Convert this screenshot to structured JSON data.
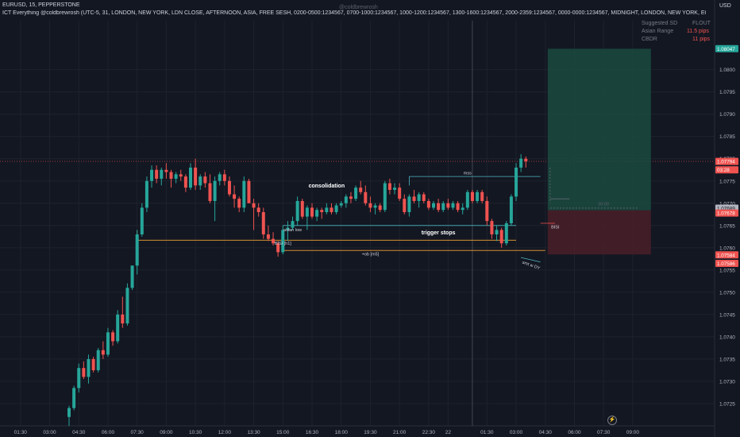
{
  "header": {
    "symbol_line": "EURUSD, 15, PEPPERSTONE",
    "indicator_line": "ICT Everything @coldbrewrosh (UTC-5, 31, LONDON, NEW YORK, LDN CLOSE, AFTERNOON, ASIA, FREE SESH, 0200-0500:1234567, 0700-1000:1234567, 1000-1200:1234567, 1300-1600:1234567, 2000-2359:1234567, 0000-0000:1234567, MIDNIGHT, LONDON, NEW YORK, EQUITIES, Dotted, Solid, Solid, Solid, 1px, 1px, 1px, MIDNIG",
    "currency": "USD",
    "watermark": "@coldbrewrosh"
  },
  "info_panel": {
    "suggested_sd_label": "Suggested SD",
    "suggested_sd_value": "FLOUT",
    "asian_range_label": "Asian Range",
    "asian_range_value": "11.5 pips",
    "cbdr_label": "CBDR",
    "cbdr_value": "11 pips"
  },
  "colors": {
    "background": "#131722",
    "up": "#26a69a",
    "down": "#ef5350",
    "grid": "#1e222d",
    "text": "#b2b5be",
    "orange": "#f0a030",
    "teal": "#4db6c0",
    "tp_zone": "#1b4a40",
    "sl_zone": "#4a1f28"
  },
  "time_icon": "lightning-icon",
  "chart_data": {
    "type": "candlestick",
    "y_axis": {
      "range": [
        1.072,
        1.0811
      ],
      "ticks": [
        1.0725,
        1.073,
        1.0735,
        1.074,
        1.0745,
        1.075,
        1.0755,
        1.076,
        1.0765,
        1.077,
        1.0775,
        1.078,
        1.0785,
        1.079,
        1.0795,
        1.08
      ]
    },
    "x_axis": {
      "ticks": [
        "01:30",
        "03:00",
        "04:30",
        "06:00",
        "07:30",
        "09:00",
        "10:30",
        "12:00",
        "13:30",
        "15:00",
        "16:30",
        "18:00",
        "19:30",
        "21:00",
        "22:30",
        "22",
        "01:30",
        "03:00",
        "04:30",
        "06:00",
        "07:30",
        "09:00"
      ],
      "tick_bar_index": [
        -10,
        -4,
        2,
        8,
        14,
        20,
        26,
        32,
        38,
        44,
        50,
        56,
        62,
        68,
        74,
        78,
        86,
        92,
        98,
        104,
        110,
        116
      ]
    },
    "candles_ohlc": [
      [
        1.0722,
        1.07245,
        1.072,
        1.0724
      ],
      [
        1.0724,
        1.0729,
        1.07235,
        1.07285
      ],
      [
        1.07285,
        1.0734,
        1.07275,
        1.0733
      ],
      [
        1.0733,
        1.07345,
        1.07305,
        1.0731
      ],
      [
        1.0731,
        1.0736,
        1.07295,
        1.0735
      ],
      [
        1.0735,
        1.07355,
        1.0732,
        1.07325
      ],
      [
        1.07325,
        1.07375,
        1.0732,
        1.0737
      ],
      [
        1.0737,
        1.0739,
        1.0735,
        1.0736
      ],
      [
        1.0736,
        1.0742,
        1.07355,
        1.0741
      ],
      [
        1.0741,
        1.07415,
        1.0738,
        1.0739
      ],
      [
        1.0739,
        1.0746,
        1.07385,
        1.0745
      ],
      [
        1.0745,
        1.0749,
        1.0742,
        1.0743
      ],
      [
        1.0743,
        1.0752,
        1.07425,
        1.0751
      ],
      [
        1.0751,
        1.0756,
        1.07505,
        1.0756
      ],
      [
        1.0756,
        1.0764,
        1.0754,
        1.0763
      ],
      [
        1.0763,
        1.077,
        1.07625,
        1.0769
      ],
      [
        1.0769,
        1.0776,
        1.0768,
        1.0775
      ],
      [
        1.0775,
        1.07785,
        1.07735,
        1.07775
      ],
      [
        1.07775,
        1.07785,
        1.07745,
        1.07755
      ],
      [
        1.07755,
        1.0778,
        1.0774,
        1.07775
      ],
      [
        1.07775,
        1.0779,
        1.07755,
        1.0777
      ],
      [
        1.0777,
        1.07775,
        1.07735,
        1.07755
      ],
      [
        1.07755,
        1.0777,
        1.07745,
        1.07765
      ],
      [
        1.07765,
        1.07775,
        1.0775,
        1.0776
      ],
      [
        1.0776,
        1.07765,
        1.07725,
        1.07735
      ],
      [
        1.07735,
        1.0779,
        1.0773,
        1.0778
      ],
      [
        1.0778,
        1.078,
        1.0773,
        1.0774
      ],
      [
        1.0774,
        1.07765,
        1.0773,
        1.0776
      ],
      [
        1.0776,
        1.0777,
        1.07735,
        1.07745
      ],
      [
        1.07745,
        1.07765,
        1.077,
        1.07705
      ],
      [
        1.07705,
        1.0776,
        1.0766,
        1.0775
      ],
      [
        1.0775,
        1.0777,
        1.0774,
        1.07765
      ],
      [
        1.07765,
        1.07775,
        1.0774,
        1.0775
      ],
      [
        1.0775,
        1.0776,
        1.07715,
        1.0772
      ],
      [
        1.0772,
        1.0774,
        1.0769,
        1.0771
      ],
      [
        1.0771,
        1.07715,
        1.0768,
        1.0769
      ],
      [
        1.0769,
        1.0776,
        1.0768,
        1.0775
      ],
      [
        1.0775,
        1.07755,
        1.077,
        1.077
      ],
      [
        1.077,
        1.0771,
        1.0764,
        1.0769
      ],
      [
        1.0769,
        1.077,
        1.0767,
        1.0768
      ],
      [
        1.0768,
        1.0769,
        1.0762,
        1.0763
      ],
      [
        1.0763,
        1.0765,
        1.07615,
        1.0762
      ],
      [
        1.0762,
        1.07635,
        1.07605,
        1.0761
      ],
      [
        1.0761,
        1.07615,
        1.0758,
        1.0759
      ],
      [
        1.0759,
        1.0765,
        1.07585,
        1.0764
      ],
      [
        1.0764,
        1.0766,
        1.07615,
        1.07645
      ],
      [
        1.07645,
        1.0767,
        1.0764,
        1.0766
      ],
      [
        1.0766,
        1.07715,
        1.0765,
        1.07705
      ],
      [
        1.07705,
        1.0771,
        1.07665,
        1.0767
      ],
      [
        1.0767,
        1.07695,
        1.0764,
        1.0769
      ],
      [
        1.0769,
        1.077,
        1.07665,
        1.0767
      ],
      [
        1.0767,
        1.0769,
        1.0766,
        1.07685
      ],
      [
        1.07685,
        1.0769,
        1.07665,
        1.0768
      ],
      [
        1.0768,
        1.077,
        1.07675,
        1.0769
      ],
      [
        1.0769,
        1.077,
        1.07675,
        1.0768
      ],
      [
        1.0768,
        1.077,
        1.07675,
        1.07695
      ],
      [
        1.07695,
        1.07705,
        1.0769,
        1.077
      ],
      [
        1.077,
        1.0772,
        1.0769,
        1.07715
      ],
      [
        1.07715,
        1.07725,
        1.077,
        1.0771
      ],
      [
        1.0771,
        1.0774,
        1.07705,
        1.07735
      ],
      [
        1.07735,
        1.0775,
        1.0772,
        1.07725
      ],
      [
        1.07725,
        1.0774,
        1.07695,
        1.077
      ],
      [
        1.077,
        1.07715,
        1.0768,
        1.0769
      ],
      [
        1.0769,
        1.077,
        1.07675,
        1.07695
      ],
      [
        1.07695,
        1.077,
        1.0768,
        1.07685
      ],
      [
        1.07685,
        1.0775,
        1.0768,
        1.07745
      ],
      [
        1.07745,
        1.07755,
        1.0772,
        1.0773
      ],
      [
        1.0773,
        1.07745,
        1.0772,
        1.07735
      ],
      [
        1.07735,
        1.07745,
        1.07705,
        1.0771
      ],
      [
        1.0771,
        1.0772,
        1.07675,
        1.0768
      ],
      [
        1.0768,
        1.0772,
        1.0767,
        1.07715
      ],
      [
        1.07715,
        1.0773,
        1.077,
        1.07705
      ],
      [
        1.07705,
        1.07725,
        1.0769,
        1.0772
      ],
      [
        1.0772,
        1.07725,
        1.077,
        1.07705
      ],
      [
        1.07705,
        1.0771,
        1.07685,
        1.0769
      ],
      [
        1.0769,
        1.07705,
        1.07685,
        1.077
      ],
      [
        1.077,
        1.0771,
        1.0768,
        1.07685
      ],
      [
        1.07685,
        1.07705,
        1.0768,
        1.077
      ],
      [
        1.077,
        1.0771,
        1.07685,
        1.0769
      ],
      [
        1.0769,
        1.07705,
        1.07685,
        1.077
      ],
      [
        1.077,
        1.07705,
        1.0768,
        1.07685
      ],
      [
        1.07685,
        1.077,
        1.07675,
        1.0769
      ],
      [
        1.0769,
        1.0773,
        1.07685,
        1.07725
      ],
      [
        1.07725,
        1.0773,
        1.077,
        1.07705
      ],
      [
        1.07705,
        1.0773,
        1.077,
        1.07725
      ],
      [
        1.07725,
        1.0773,
        1.077,
        1.07705
      ],
      [
        1.07705,
        1.07715,
        1.0765,
        1.0766
      ],
      [
        1.0766,
        1.07665,
        1.0762,
        1.0763
      ],
      [
        1.0763,
        1.0765,
        1.07615,
        1.0764
      ],
      [
        1.0764,
        1.07645,
        1.076,
        1.0761
      ],
      [
        1.0761,
        1.0766,
        1.07605,
        1.07655
      ],
      [
        1.07655,
        1.0772,
        1.0765,
        1.07715
      ],
      [
        1.07715,
        1.0779,
        1.07705,
        1.0778
      ],
      [
        1.0778,
        1.0781,
        1.0777,
        1.078
      ],
      [
        1.078,
        1.07805,
        1.0778,
        1.07794
      ]
    ],
    "annotations": [
      {
        "text": "consolidation"
      },
      {
        "text": "trigger stops"
      },
      {
        "text": "asian low"
      },
      {
        "text": "BISI [h1]"
      },
      {
        "text": "+ob [m5]"
      },
      {
        "text": "mss"
      },
      {
        "text": "BISI"
      },
      {
        "text": "smt w DY"
      },
      {
        "text": "00:00"
      }
    ],
    "price_labels": [
      {
        "text": "1.08047",
        "style": "tp"
      },
      {
        "text": "1.07794",
        "style": "current"
      },
      {
        "text": "03:28",
        "style": "current"
      },
      {
        "text": "1.07689",
        "style": "entry"
      },
      {
        "text": "1.07678",
        "style": "entry"
      },
      {
        "text": "1.07584",
        "style": "sl"
      },
      {
        "text": "1.07586",
        "style": "sl"
      }
    ]
  }
}
